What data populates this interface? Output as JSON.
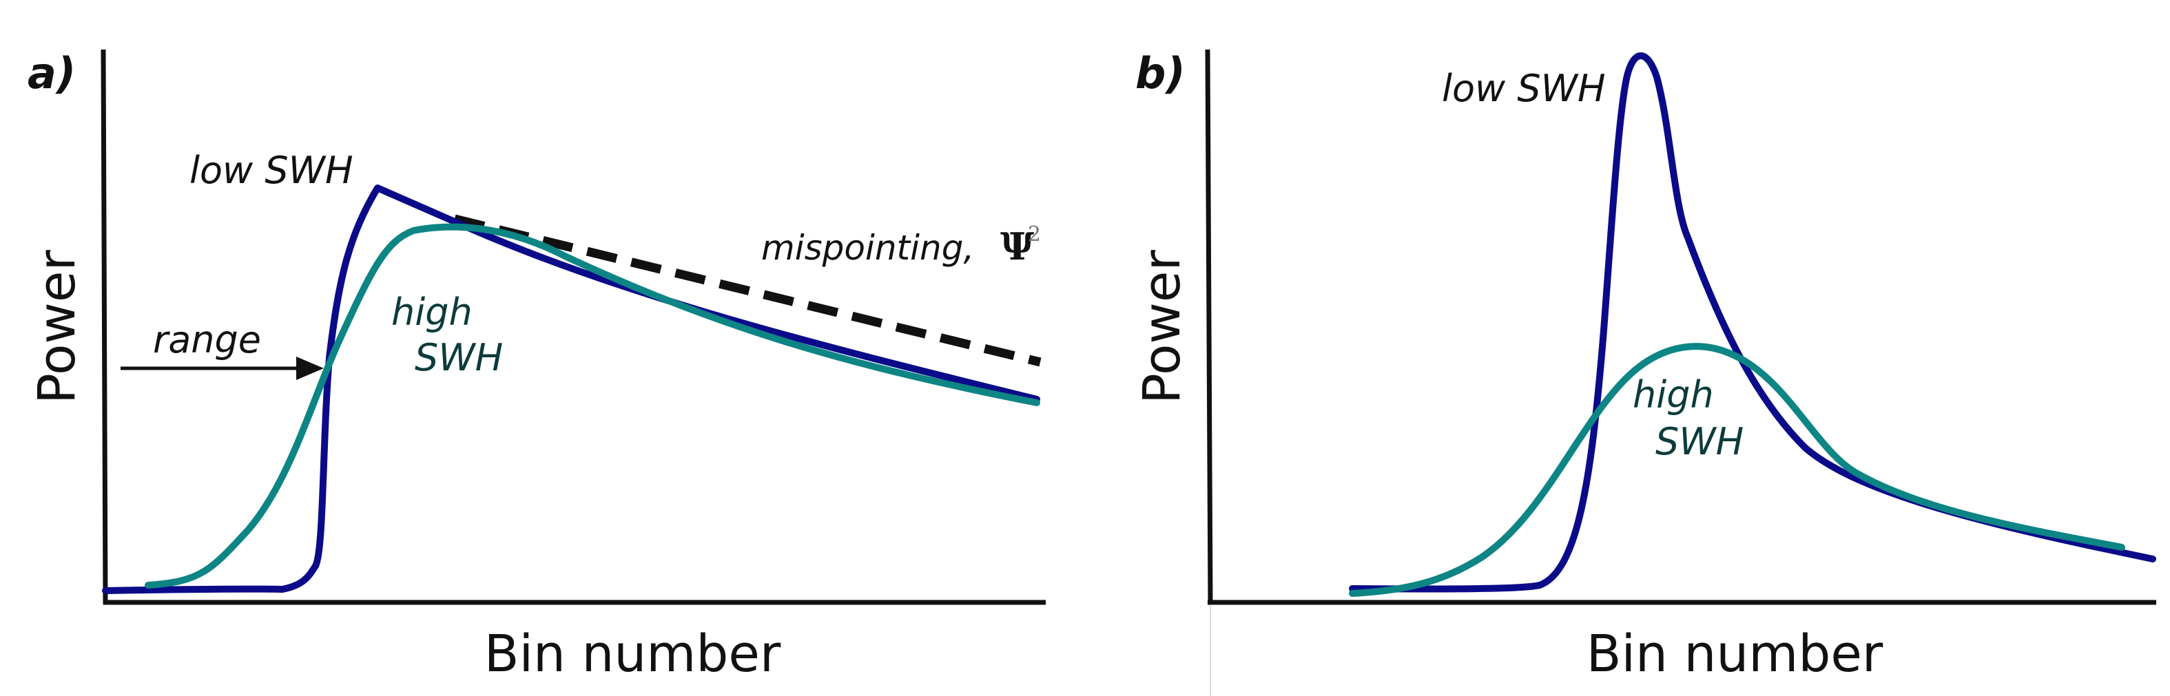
{
  "colors": {
    "low_swh": "#0b0b8a",
    "high_swh": "#0e8585",
    "high_swh_text": "#0d3b3b",
    "axis": "#111111",
    "mispointing": "#111111"
  },
  "panels": [
    {
      "id": "a",
      "label": "a)",
      "x_label": "Bin number",
      "y_label": "Power",
      "low_swh_label": "low SWH",
      "high_swh_label_line1": "high",
      "high_swh_label_line2": "SWH",
      "range_label": "range",
      "mispointing_label": "mispointing, ",
      "mispointing_symbol": "Ψ",
      "mispointing_superscript": "2"
    },
    {
      "id": "b",
      "label": "b)",
      "x_label": "Bin number",
      "y_label": "Power",
      "low_swh_label": "low SWH",
      "high_swh_label_line1": "high",
      "high_swh_label_line2": "SWH"
    }
  ]
}
